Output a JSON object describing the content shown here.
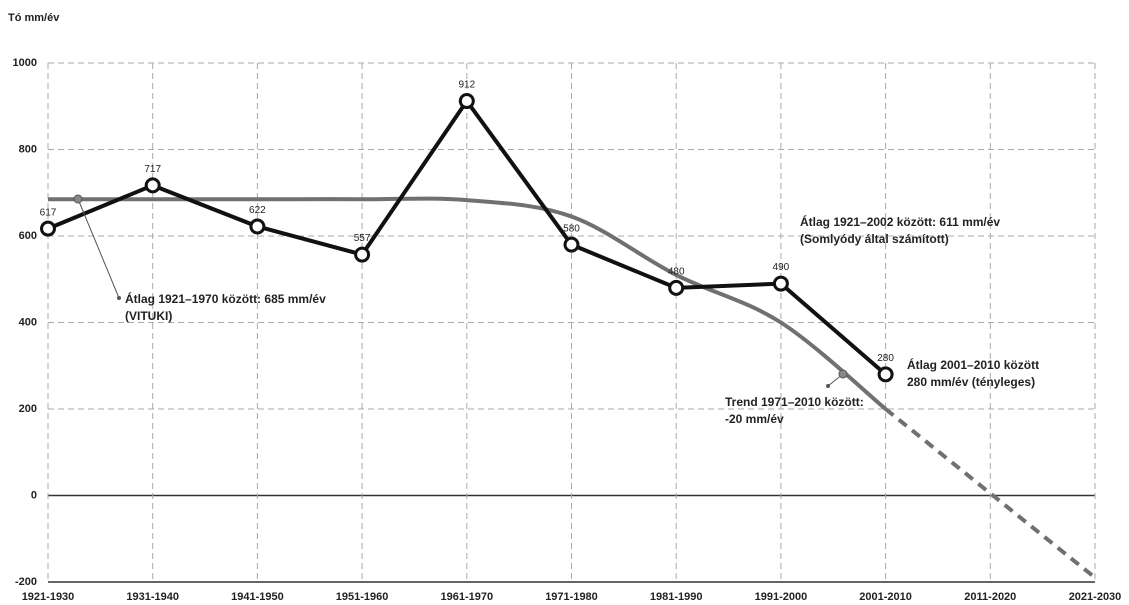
{
  "chart_data": {
    "type": "line",
    "y_label": "Tó mm/év",
    "categories": [
      "1921-1930",
      "1931-1940",
      "1941-1950",
      "1951-1960",
      "1961-1970",
      "1971-1980",
      "1981-1990",
      "1991-2000",
      "2001-2010",
      "2011-2020",
      "2021-2030"
    ],
    "series": [
      {
        "color": "#111111",
        "values": [
          617,
          717,
          622,
          557,
          912,
          580,
          480,
          490,
          280,
          null,
          null
        ],
        "markers": true,
        "data_labels": true
      },
      {
        "color": "#707070",
        "values": [
          685,
          685,
          685,
          685,
          683,
          645,
          510,
          400,
          200,
          5,
          -190
        ],
        "dash_from": 8
      }
    ],
    "ylim": [
      -200,
      1000
    ],
    "yticks": [
      -200,
      0,
      200,
      400,
      600,
      800,
      1000
    ],
    "grid": true,
    "annotations": [
      [
        "Átlag 1921–1970 között: 685 mm/év",
        "(VITUKI)"
      ],
      [
        "Átlag 1921–2002 között: 611 mm/év",
        "(Somlyódy által számított)"
      ],
      [
        "Átlag 2001–2010 között",
        "280 mm/év (tényleges)"
      ],
      [
        "Trend 1971–2010 között:",
        "-20 mm/év"
      ]
    ]
  }
}
